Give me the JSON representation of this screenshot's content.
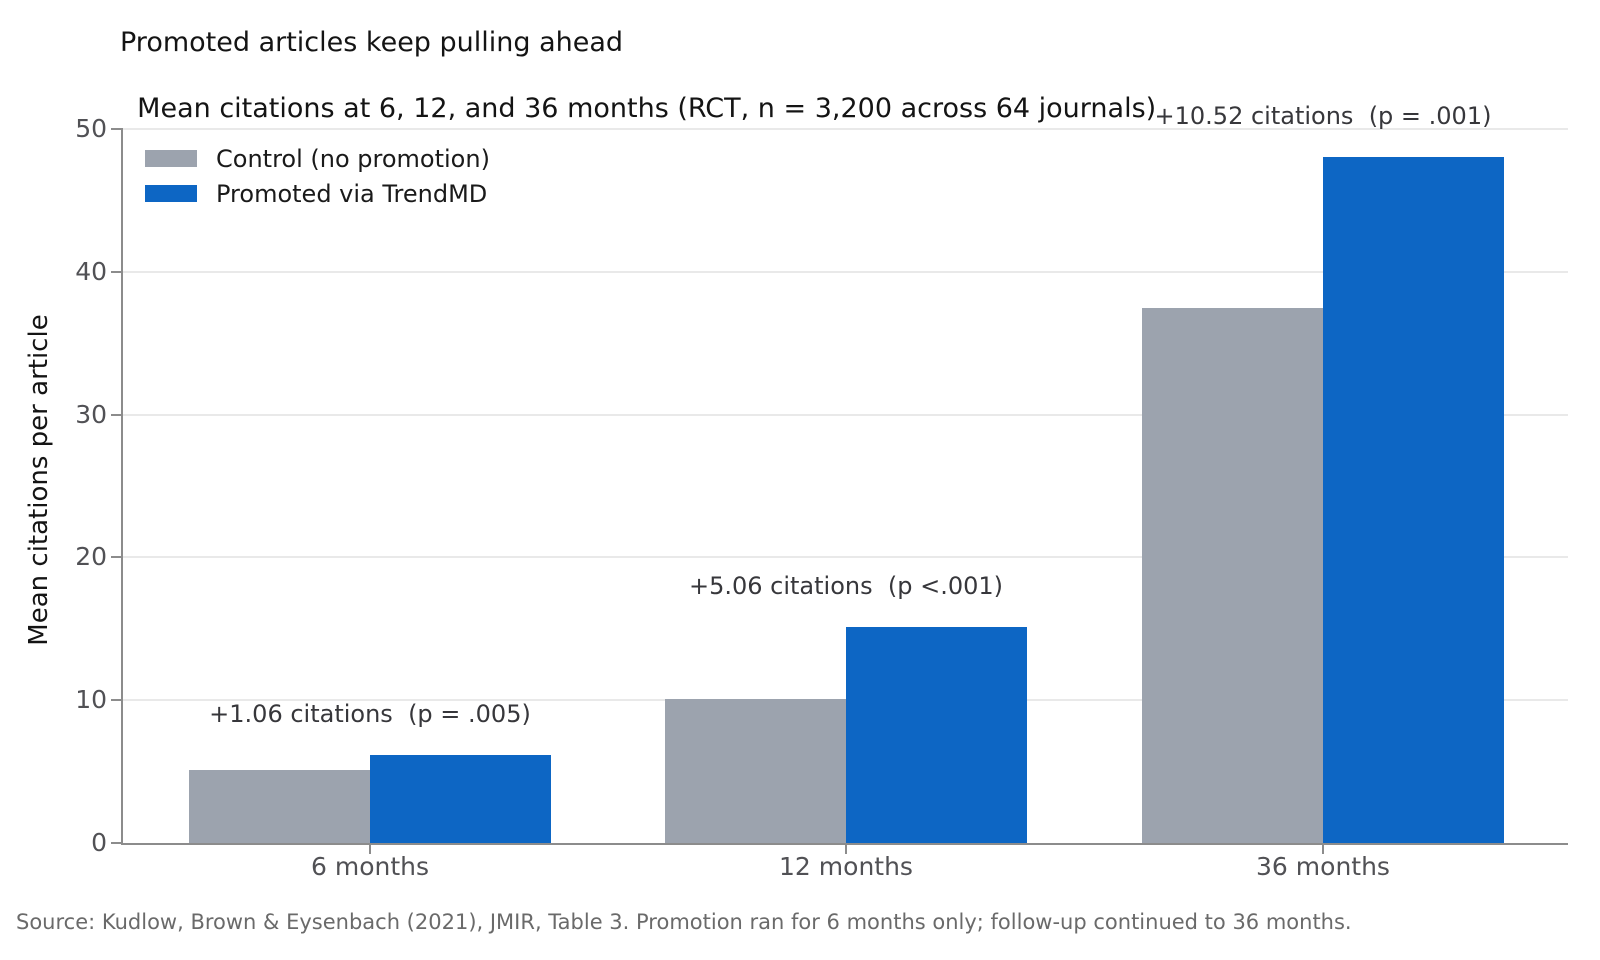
{
  "title": {
    "line1": "Promoted articles keep pulling ahead",
    "line2": "Mean citations at 6, 12, and 36 months (RCT, n = 3,200 across 64 journals)"
  },
  "source": "Source: Kudlow, Brown & Eysenbach (2021), JMIR, Table 3. Promotion ran for 6 months only; follow-up continued to 36 months.",
  "chart_data": {
    "type": "bar",
    "categories": [
      "6 months",
      "12 months",
      "36 months"
    ],
    "series": [
      {
        "name": "Control (no promotion)",
        "color": "#9ca3ae",
        "values": [
          5.1,
          10.08,
          37.49
        ]
      },
      {
        "name": "Promoted via TrendMD",
        "color": "#0d66c4",
        "values": [
          6.16,
          15.14,
          48.01
        ]
      }
    ],
    "annotations": [
      "+1.06 citations  (p = .005)",
      "+5.06 citations  (p <.001)",
      "+10.52 citations  (p = .001)"
    ],
    "ylabel": "Mean citations per article",
    "yticks": [
      0,
      10,
      20,
      30,
      40,
      50
    ],
    "ylim": [
      0,
      50
    ],
    "grid": true,
    "legend_position": "upper left"
  },
  "colors": {
    "control_bar": "#9ca3ae",
    "promoted_bar": "#0d66c4",
    "gridline": "#e9e9e9",
    "axis_spine": "#8c8c8c",
    "tick_text": "#515155",
    "annotation_text": "#37373b",
    "source_text": "#6a6a6a"
  }
}
